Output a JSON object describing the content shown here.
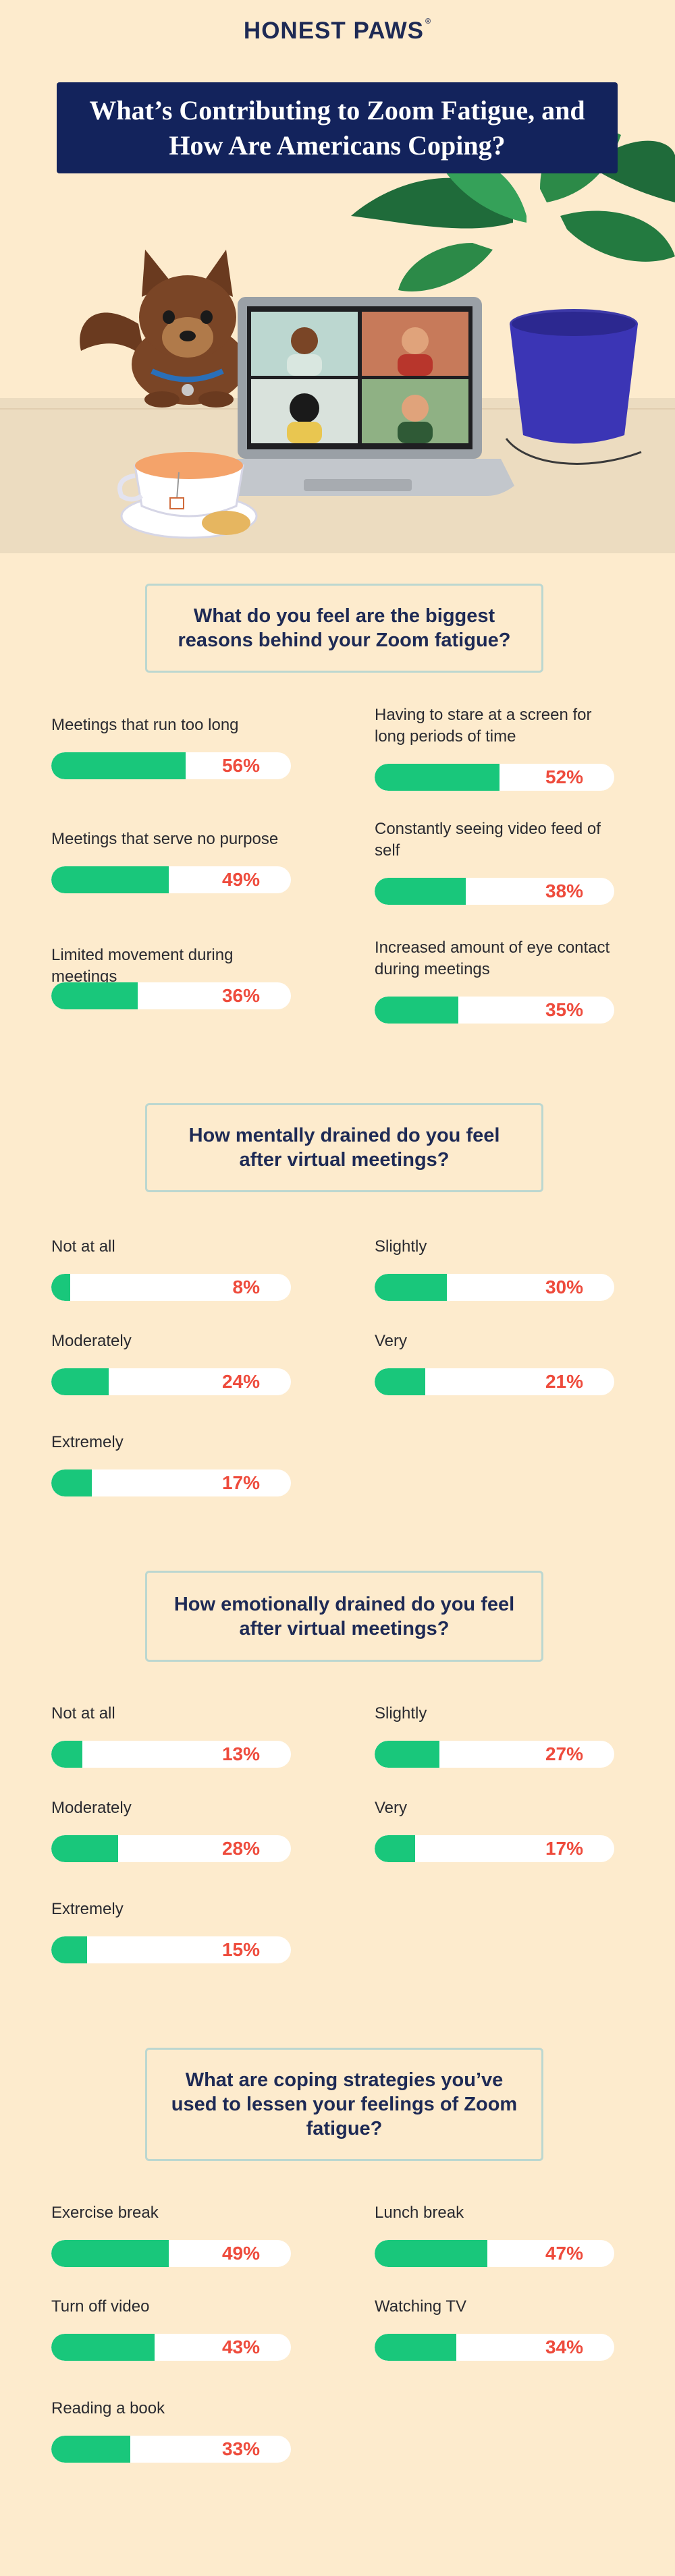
{
  "brand": "HONEST PAWS",
  "brand_mark": "®",
  "title": "What’s Contributing to Zoom Fatigue, and How Are Americans Coping?",
  "colors": {
    "background": "#fdebcd",
    "navy": "#13235c",
    "bar_fill": "#19c77b",
    "bar_track": "#ffffff",
    "percent_text": "#ee4b3c",
    "question_border": "#bcd7d0"
  },
  "chart_data": [
    {
      "type": "bar",
      "title": "What do you feel are the biggest reasons behind your Zoom fatigue?",
      "unit": "%",
      "categories": [
        "Meetings that run too long",
        "Having to stare at a screen for long periods of time",
        "Meetings that serve no purpose",
        "Constantly seeing video feed of self",
        "Limited movement during meetings",
        "Increased amount of eye contact during meetings"
      ],
      "values": [
        56,
        52,
        49,
        38,
        36,
        35
      ],
      "labels": [
        "56%",
        "52%",
        "49%",
        "38%",
        "36%",
        "35%"
      ],
      "ylim": [
        0,
        100
      ]
    },
    {
      "type": "bar",
      "title": "How mentally drained do you feel after virtual meetings?",
      "unit": "%",
      "categories": [
        "Not at all",
        "Slightly",
        "Moderately",
        "Very",
        "Extremely"
      ],
      "values": [
        8,
        30,
        24,
        21,
        17
      ],
      "labels": [
        "8%",
        "30%",
        "24%",
        "21%",
        "17%"
      ],
      "ylim": [
        0,
        100
      ]
    },
    {
      "type": "bar",
      "title": "How emotionally drained do you feel after virtual meetings?",
      "unit": "%",
      "categories": [
        "Not at all",
        "Slightly",
        "Moderately",
        "Very",
        "Extremely"
      ],
      "values": [
        13,
        27,
        28,
        17,
        15
      ],
      "labels": [
        "13%",
        "27%",
        "28%",
        "17%",
        "15%"
      ],
      "ylim": [
        0,
        100
      ]
    },
    {
      "type": "bar",
      "title": "What are coping strategies you’ve used to lessen your feelings of Zoom fatigue?",
      "unit": "%",
      "categories": [
        "Exercise break",
        "Lunch break",
        "Turn off video",
        "Watching TV",
        "Reading a book"
      ],
      "values": [
        49,
        47,
        43,
        34,
        33
      ],
      "labels": [
        "49%",
        "47%",
        "43%",
        "34%",
        "33%"
      ],
      "ylim": [
        0,
        100
      ]
    }
  ]
}
